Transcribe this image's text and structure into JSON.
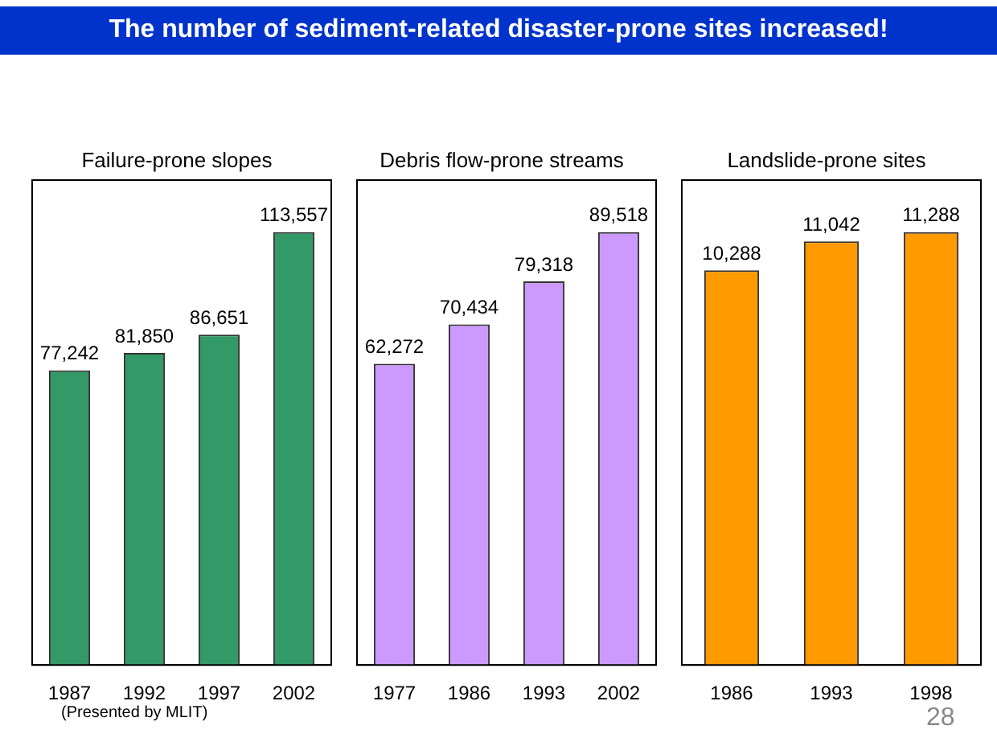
{
  "chart_data": [
    {
      "type": "other",
      "title": "The number of sediment-related disaster-prone sites increased!"
    },
    {
      "type": "bar",
      "title": "Failure-prone slopes",
      "categories": [
        "1987",
        "1992",
        "1997",
        "2002"
      ],
      "values": [
        77242,
        81850,
        86651,
        113557
      ],
      "value_labels": [
        "77,242",
        "81,850",
        "86,651",
        "113,557"
      ],
      "color": "#339966",
      "tick_labels": "x",
      "annotations": [
        "(Presented by MLIT)"
      ]
    },
    {
      "type": "bar",
      "title": "Debris flow-prone streams",
      "categories": [
        "1977",
        "1986",
        "1993",
        "2002"
      ],
      "values": [
        62272,
        70434,
        79318,
        89518
      ],
      "value_labels": [
        "62,272",
        "70,434",
        "79,318",
        "89,518"
      ],
      "color": "#cc99ff",
      "tick_labels": "x"
    },
    {
      "type": "bar",
      "title": "Landslide-prone sites",
      "categories": [
        "1986",
        "1993",
        "1998"
      ],
      "values": [
        10288,
        11042,
        11288
      ],
      "value_labels": [
        "10,288",
        "11,042",
        "11,288"
      ],
      "color": "#ff9900",
      "tick_labels": "x",
      "annotations": [
        "28"
      ]
    }
  ]
}
